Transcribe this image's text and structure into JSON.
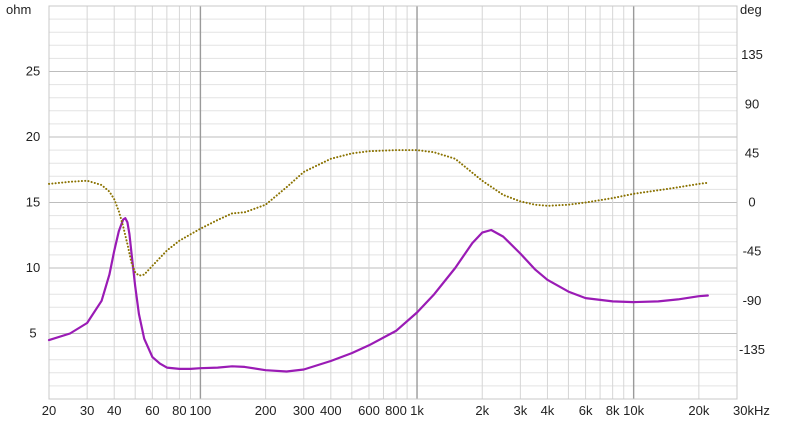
{
  "chart_data": {
    "type": "line",
    "title": "",
    "xscale": "log",
    "xlim": [
      20,
      30000
    ],
    "left_axis": {
      "unit_label": "ohm",
      "ylim": [
        0,
        30
      ],
      "ticks": [
        5,
        10,
        15,
        20,
        25
      ],
      "tick_labels": [
        "5",
        "10",
        "15",
        "20",
        "25"
      ]
    },
    "right_axis": {
      "unit_label": "deg",
      "ylim": [
        -180,
        180
      ],
      "ticks": [
        -135,
        -90,
        -45,
        0,
        45,
        90,
        135
      ],
      "tick_labels": [
        "-135",
        "-90",
        "-45",
        "0",
        "45",
        "90",
        "135"
      ]
    },
    "x_ticks": [
      20,
      30,
      40,
      60,
      80,
      100,
      200,
      300,
      400,
      600,
      800,
      1000,
      2000,
      3000,
      4000,
      6000,
      8000,
      10000,
      20000,
      30000
    ],
    "x_tick_labels": [
      "20",
      "30",
      "40",
      "60",
      "80",
      "100",
      "200",
      "300",
      "400",
      "600",
      "800",
      "1k",
      "2k",
      "3k",
      "4k",
      "6k",
      "8k",
      "10k",
      "20k",
      "30kHz"
    ],
    "grid": true,
    "series": [
      {
        "axis": "left",
        "style": "solid",
        "color": "#9a1bb5",
        "x": [
          20,
          25,
          30,
          35,
          38,
          40,
          42,
          44,
          45,
          46,
          47,
          48,
          50,
          52,
          55,
          60,
          65,
          70,
          80,
          90,
          100,
          120,
          140,
          160,
          200,
          250,
          300,
          400,
          500,
          600,
          800,
          1000,
          1200,
          1500,
          1800,
          2000,
          2200,
          2500,
          3000,
          3500,
          4000,
          5000,
          6000,
          8000,
          10000,
          13000,
          16000,
          20000,
          22000
        ],
        "y": [
          4.5,
          5.0,
          5.8,
          7.5,
          9.5,
          11.3,
          12.8,
          13.7,
          13.8,
          13.5,
          12.6,
          11.2,
          8.6,
          6.5,
          4.6,
          3.2,
          2.7,
          2.4,
          2.3,
          2.3,
          2.35,
          2.4,
          2.5,
          2.45,
          2.2,
          2.1,
          2.25,
          2.9,
          3.5,
          4.1,
          5.2,
          6.6,
          8.0,
          10.0,
          11.9,
          12.7,
          12.9,
          12.4,
          11.1,
          9.9,
          9.1,
          8.2,
          7.7,
          7.45,
          7.4,
          7.45,
          7.6,
          7.85,
          7.9
        ]
      },
      {
        "axis": "right",
        "style": "dotted",
        "color": "#8a7200",
        "x": [
          20,
          25,
          30,
          35,
          38,
          40,
          42,
          44,
          46,
          48,
          50,
          52,
          55,
          60,
          70,
          80,
          100,
          120,
          140,
          160,
          200,
          250,
          300,
          400,
          500,
          600,
          800,
          1000,
          1200,
          1500,
          2000,
          2500,
          3000,
          3500,
          4000,
          5000,
          6000,
          8000,
          10000,
          15000,
          20000,
          22000
        ],
        "y": [
          17,
          19,
          20,
          16,
          10,
          3,
          -8,
          -22,
          -38,
          -55,
          -64,
          -67,
          -66,
          -58,
          -44,
          -35,
          -24,
          -16,
          -10,
          -9,
          -2,
          14,
          28,
          40,
          45,
          47,
          48,
          48,
          46,
          40,
          20,
          7,
          1,
          -2,
          -3,
          -2,
          0,
          4,
          8,
          13,
          17,
          18
        ]
      }
    ]
  }
}
